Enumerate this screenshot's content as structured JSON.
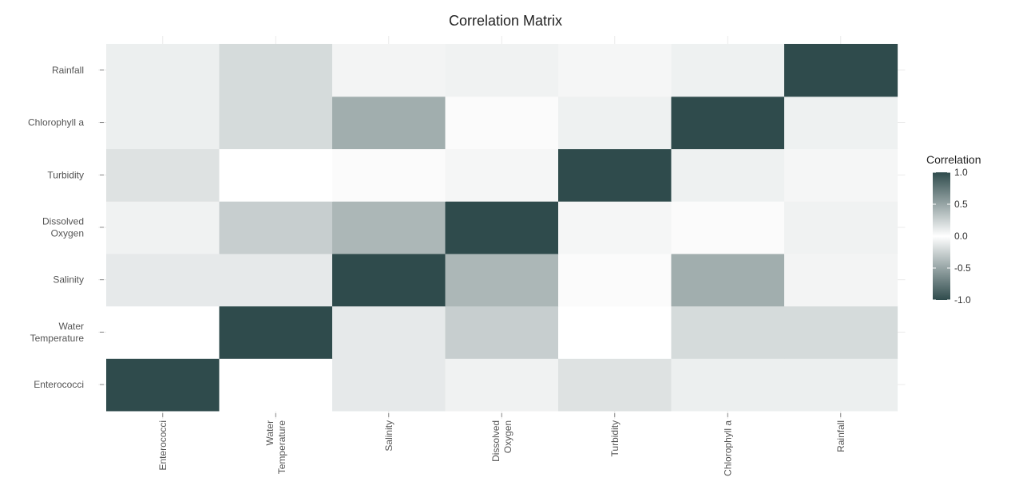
{
  "chart_data": {
    "type": "heatmap",
    "title": "Correlation Matrix",
    "variables": [
      [
        "Enterococci"
      ],
      [
        "Water",
        "Temperature"
      ],
      [
        "Salinity"
      ],
      [
        "Dissolved",
        "Oxygen"
      ],
      [
        "Turbidity"
      ],
      [
        "Chlorophyll a"
      ],
      [
        "Rainfall"
      ]
    ],
    "values": [
      [
        1.0,
        0.0,
        0.12,
        0.07,
        0.16,
        0.09,
        0.09
      ],
      [
        0.0,
        1.0,
        0.12,
        0.27,
        0.0,
        0.2,
        0.2
      ],
      [
        0.12,
        0.12,
        1.0,
        0.4,
        0.02,
        0.45,
        0.06
      ],
      [
        0.07,
        0.27,
        0.4,
        1.0,
        0.05,
        0.02,
        0.07
      ],
      [
        0.16,
        0.0,
        0.02,
        0.05,
        1.0,
        0.08,
        0.05
      ],
      [
        0.09,
        0.2,
        0.45,
        0.02,
        0.08,
        1.0,
        0.08
      ],
      [
        0.09,
        0.2,
        0.06,
        0.07,
        0.05,
        0.08,
        1.0
      ]
    ],
    "legend": {
      "title": "Correlation",
      "ticks": [
        "1.0",
        "0.5",
        "0.0",
        "-0.5",
        "-1.0"
      ],
      "placement": "right"
    },
    "colors": {
      "high": "#2f4b4c",
      "mid": "#ffffff",
      "low": "#2f4b4c"
    },
    "range": [
      -1,
      1
    ],
    "grid": true
  }
}
